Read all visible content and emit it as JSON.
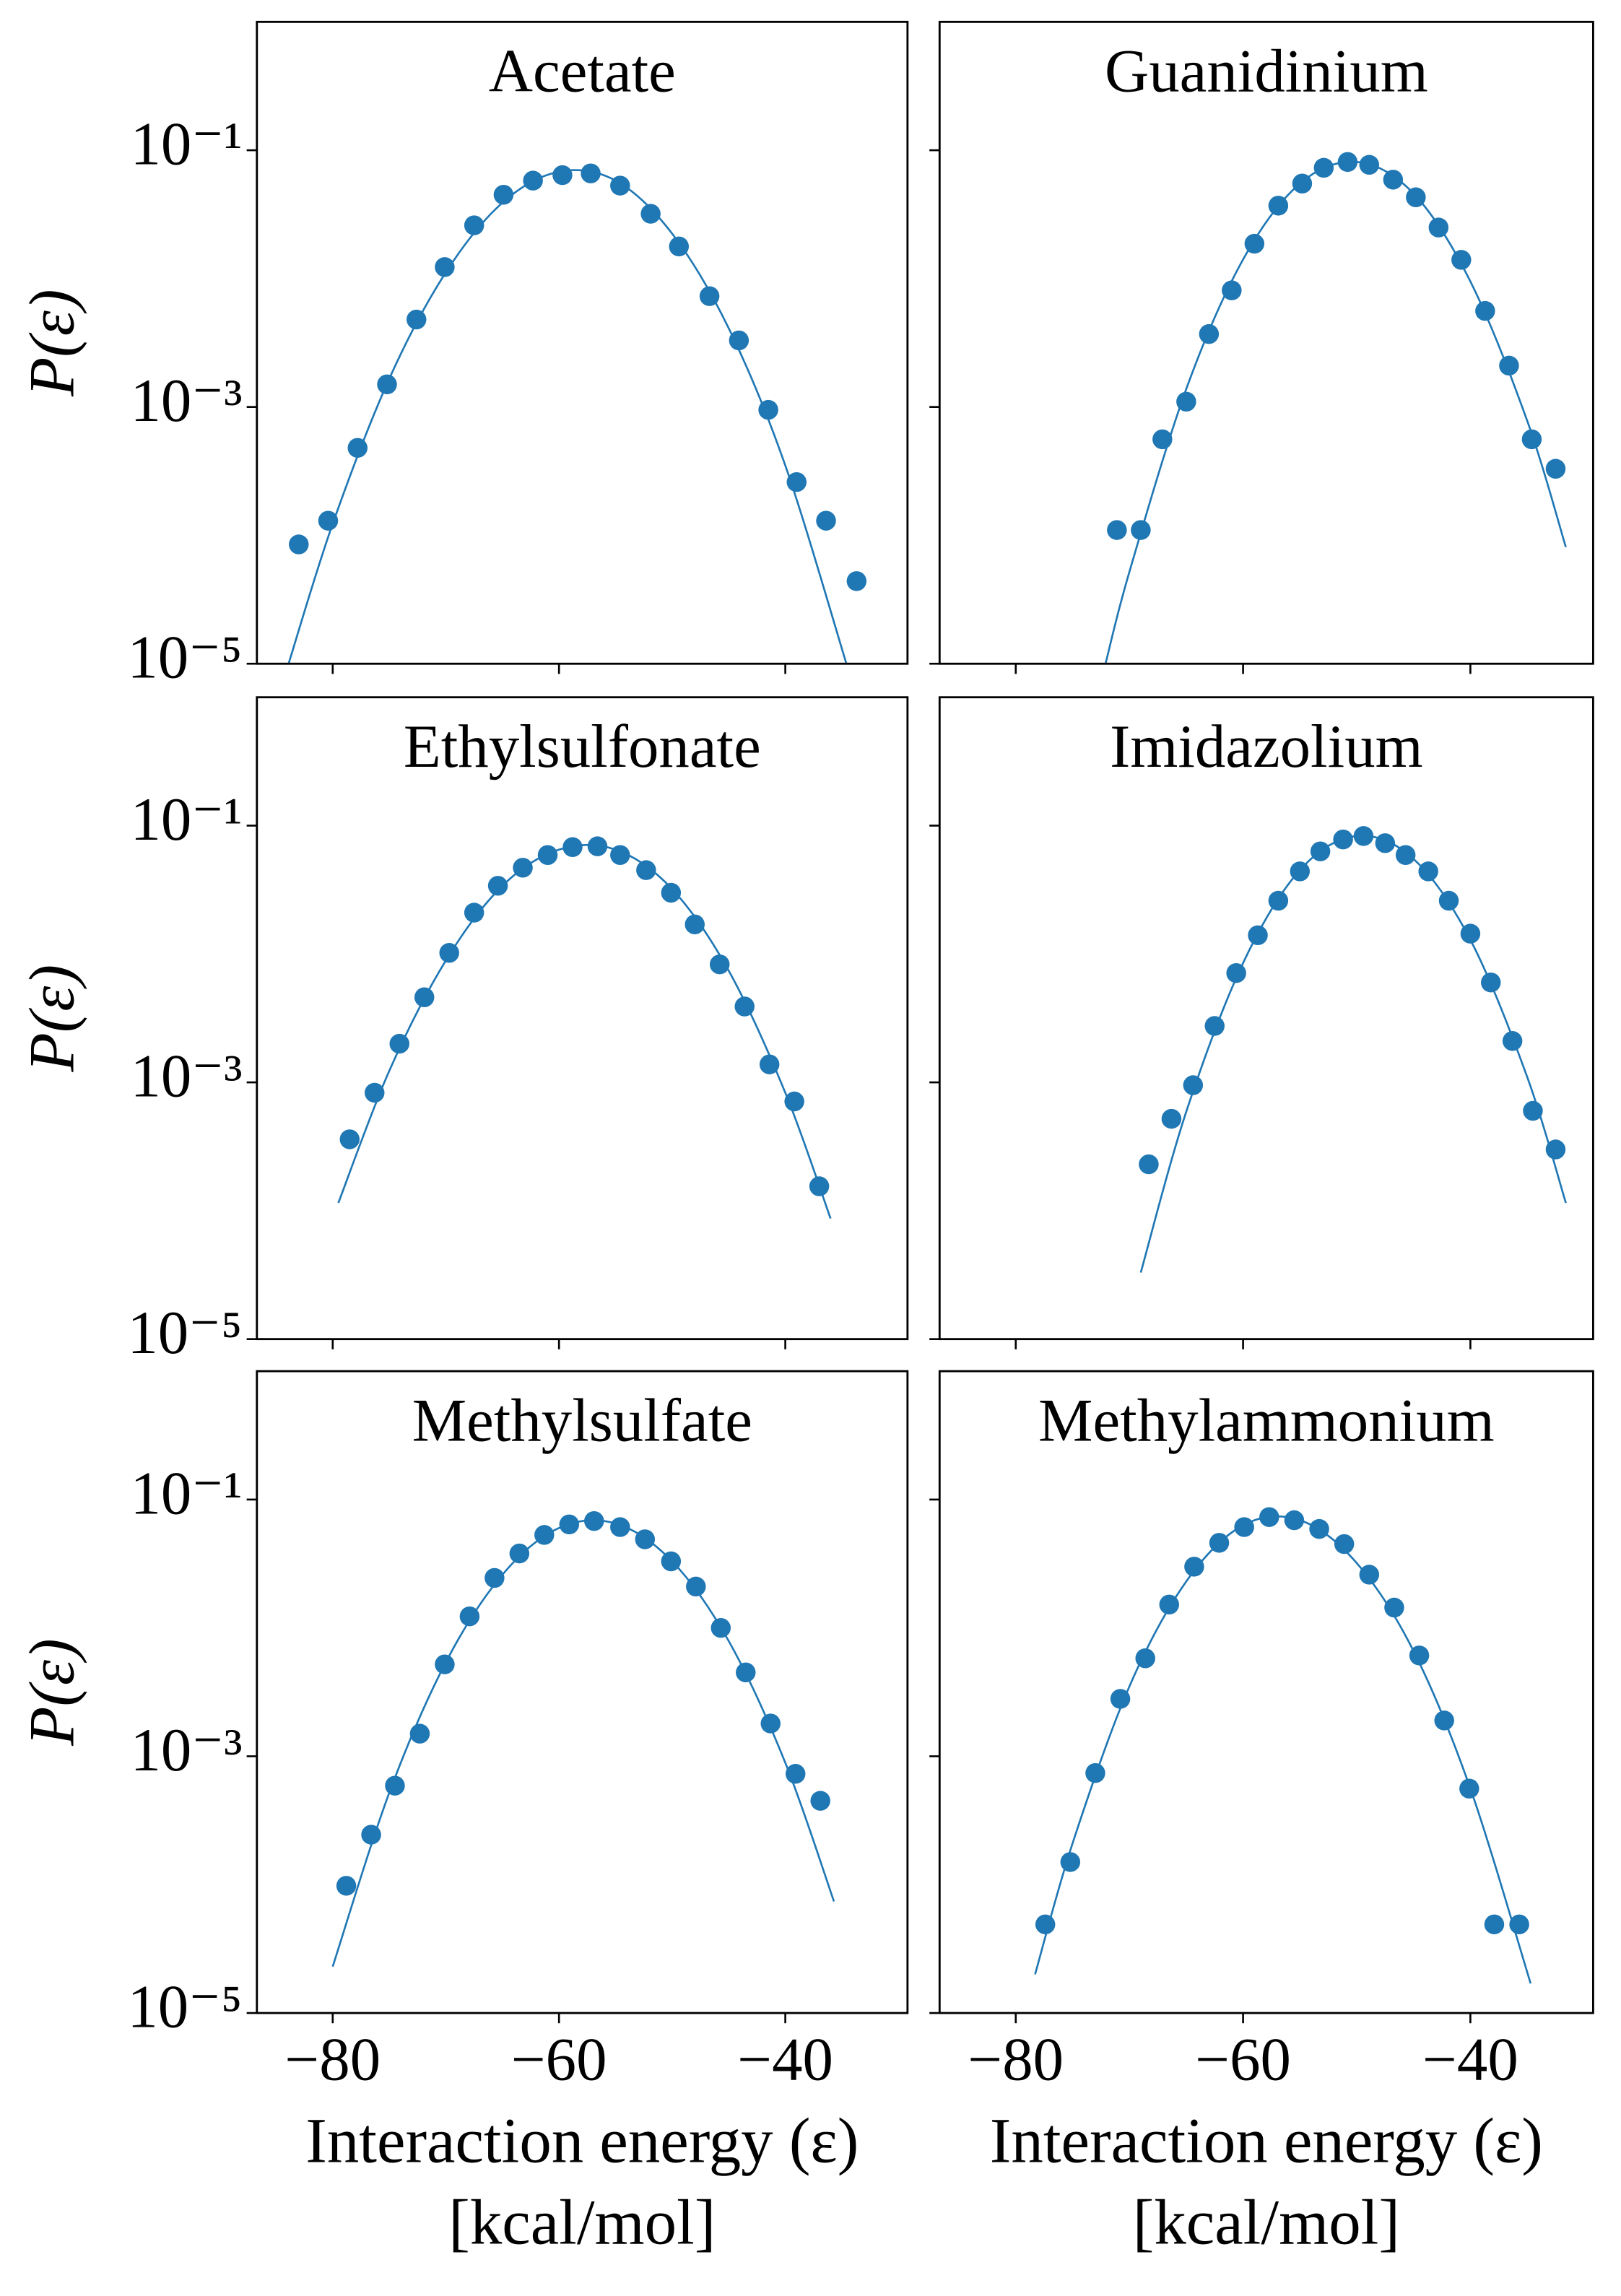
{
  "chart_data": [
    {
      "type": "scatter",
      "title": "Acetate",
      "ylabel": "P(ε)",
      "color": "#1f77b4",
      "yscale": "log",
      "xlim": [
        -86.7,
        -29.2
      ],
      "ylim": [
        1e-05,
        1
      ],
      "xticks": [
        -80,
        -60,
        -40
      ],
      "yticks": [
        {
          "value": 1e-05,
          "label": "10⁻⁵"
        },
        {
          "value": 0.001,
          "label": "10⁻³"
        },
        {
          "value": 0.1,
          "label": "10⁻¹"
        }
      ],
      "points": {
        "x": [
          -83.0,
          -80.4,
          -77.8,
          -75.2,
          -72.6,
          -70.1,
          -67.5,
          -64.9,
          -62.3,
          -59.7,
          -57.2,
          -54.6,
          -51.9,
          -49.4,
          -46.7,
          -44.1,
          -41.5,
          -39.0,
          -36.4,
          -33.7
        ],
        "y": [
          8.5e-05,
          0.00013,
          0.00048,
          0.0015,
          0.0048,
          0.0123,
          0.026,
          0.045,
          0.058,
          0.064,
          0.066,
          0.053,
          0.032,
          0.0178,
          0.0073,
          0.0033,
          0.00095,
          0.00026,
          0.00013,
          4.4e-05
        ]
      },
      "fit": {
        "x": [
          -83.9,
          -80,
          -75,
          -70,
          -65,
          -60,
          -55,
          -50,
          -45,
          -40,
          -34.6
        ],
        "y": [
          1e-05,
          0.000123,
          0.00166,
          0.0112,
          0.039,
          0.068,
          0.058,
          0.0224,
          0.0041,
          0.00035,
          1e-05
        ]
      }
    },
    {
      "type": "scatter",
      "title": "Guanidinium",
      "color": "#1f77b4",
      "yscale": "log",
      "xlim": [
        -86.7,
        -29.2
      ],
      "ylim": [
        1e-05,
        1
      ],
      "xticks": [
        -80,
        -60,
        -40
      ],
      "yticks": [
        1e-05,
        0.001,
        0.1
      ],
      "points": {
        "x": [
          -71.1,
          -69.0,
          -67.1,
          -65.0,
          -63.0,
          -61.0,
          -59.0,
          -56.9,
          -54.8,
          -52.9,
          -50.8,
          -48.9,
          -46.8,
          -44.8,
          -42.8,
          -40.8,
          -38.7,
          -36.6,
          -34.6,
          -32.5
        ],
        "y": [
          0.00011,
          0.00011,
          0.00056,
          0.0011,
          0.0037,
          0.0081,
          0.0187,
          0.037,
          0.055,
          0.073,
          0.081,
          0.077,
          0.059,
          0.043,
          0.025,
          0.014,
          0.0056,
          0.0021,
          0.00056,
          0.00033
        ]
      },
      "fit": {
        "x": [
          -72.1,
          -70,
          -65,
          -60,
          -55,
          -50,
          -45,
          -40,
          -35,
          -31.6
        ],
        "y": [
          1e-05,
          5.2e-05,
          0.00138,
          0.0141,
          0.055,
          0.081,
          0.046,
          0.0095,
          0.00078,
          8.1e-05
        ]
      }
    },
    {
      "type": "scatter",
      "title": "Ethylsulfonate",
      "ylabel": "P(ε)",
      "color": "#1f77b4",
      "yscale": "log",
      "xlim": [
        -86.7,
        -29.2
      ],
      "ylim": [
        1e-05,
        1
      ],
      "xticks": [
        -80,
        -60,
        -40
      ],
      "yticks": [
        {
          "value": 1e-05,
          "label": "10⁻⁵"
        },
        {
          "value": 0.001,
          "label": "10⁻³"
        },
        {
          "value": 0.1,
          "label": "10⁻¹"
        }
      ],
      "points": {
        "x": [
          -78.5,
          -76.3,
          -74.1,
          -71.9,
          -69.7,
          -67.5,
          -65.4,
          -63.2,
          -61.0,
          -58.8,
          -56.6,
          -54.6,
          -52.3,
          -50.1,
          -48.0,
          -45.8,
          -43.6,
          -41.4,
          -39.2,
          -37.0
        ],
        "y": [
          0.00036,
          0.00083,
          0.002,
          0.0046,
          0.0102,
          0.021,
          0.034,
          0.047,
          0.059,
          0.068,
          0.069,
          0.059,
          0.045,
          0.03,
          0.017,
          0.0083,
          0.0039,
          0.00138,
          0.00071,
          0.000155
        ]
      },
      "fit": {
        "x": [
          -79.5,
          -75,
          -70,
          -65,
          -60,
          -55,
          -50,
          -45,
          -40,
          -36
        ],
        "y": [
          0.000115,
          0.00123,
          0.0089,
          0.034,
          0.065,
          0.065,
          0.032,
          0.0074,
          0.00083,
          8.7e-05
        ]
      }
    },
    {
      "type": "scatter",
      "title": "Imidazolium",
      "color": "#1f77b4",
      "yscale": "log",
      "xlim": [
        -86.7,
        -29.2
      ],
      "ylim": [
        1e-05,
        1
      ],
      "xticks": [
        -80,
        -60,
        -40
      ],
      "yticks": [
        1e-05,
        0.001,
        0.1
      ],
      "points": {
        "x": [
          -68.3,
          -66.3,
          -64.4,
          -62.5,
          -60.6,
          -58.7,
          -56.9,
          -55.0,
          -53.2,
          -51.2,
          -49.4,
          -47.5,
          -45.7,
          -43.7,
          -41.9,
          -40.0,
          -38.2,
          -36.3,
          -34.5,
          -32.5
        ],
        "y": [
          0.00023,
          0.00052,
          0.00095,
          0.00275,
          0.0071,
          0.014,
          0.026,
          0.044,
          0.063,
          0.078,
          0.083,
          0.073,
          0.059,
          0.044,
          0.026,
          0.0144,
          0.006,
          0.0021,
          0.0006,
          0.0003
        ]
      },
      "fit": {
        "x": [
          -69,
          -65,
          -60,
          -55,
          -50,
          -45,
          -40,
          -35,
          -31.6
        ],
        "y": [
          3.3e-05,
          0.00059,
          0.0085,
          0.045,
          0.083,
          0.055,
          0.0129,
          0.0011,
          0.000115
        ]
      }
    },
    {
      "type": "scatter",
      "title": "Methylsulfate",
      "ylabel": "P(ε)",
      "xlabel": [
        "Interaction energy (ε)",
        "[kcal/mol]"
      ],
      "color": "#1f77b4",
      "yscale": "log",
      "xlim": [
        -86.7,
        -29.2
      ],
      "ylim": [
        1e-05,
        1
      ],
      "xticks": [
        {
          "value": -80,
          "label": "−80"
        },
        {
          "value": -60,
          "label": "−60"
        },
        {
          "value": -40,
          "label": "−40"
        }
      ],
      "yticks": [
        {
          "value": 1e-05,
          "label": "10⁻⁵"
        },
        {
          "value": 0.001,
          "label": "10⁻³"
        },
        {
          "value": 0.1,
          "label": "10⁻¹"
        }
      ],
      "points": {
        "x": [
          -78.8,
          -76.6,
          -74.5,
          -72.3,
          -70.1,
          -67.9,
          -65.7,
          -63.5,
          -61.3,
          -59.1,
          -56.9,
          -54.6,
          -52.4,
          -50.1,
          -47.9,
          -45.7,
          -43.5,
          -41.3,
          -39.1,
          -36.9
        ],
        "y": [
          9.8e-05,
          0.000245,
          0.00059,
          0.0015,
          0.0052,
          0.0123,
          0.0245,
          0.038,
          0.053,
          0.064,
          0.068,
          0.061,
          0.049,
          0.033,
          0.021,
          0.01,
          0.0045,
          0.0018,
          0.00073,
          0.00045
        ]
      },
      "fit": {
        "x": [
          -80,
          -75,
          -70,
          -65,
          -60,
          -55,
          -50,
          -45,
          -40,
          -35.7
        ],
        "y": [
          2.3e-05,
          0.00052,
          0.0054,
          0.026,
          0.06,
          0.065,
          0.033,
          0.0079,
          0.00089,
          7.4e-05
        ]
      }
    },
    {
      "type": "scatter",
      "title": "Methylammonium",
      "xlabel": [
        "Interaction energy (ε)",
        "[kcal/mol]"
      ],
      "color": "#1f77b4",
      "yscale": "log",
      "xlim": [
        -86.7,
        -29.2
      ],
      "ylim": [
        1e-05,
        1
      ],
      "xticks": [
        {
          "value": -80,
          "label": "−80"
        },
        {
          "value": -60,
          "label": "−60"
        },
        {
          "value": -40,
          "label": "−40"
        }
      ],
      "yticks": [
        1e-05,
        0.001,
        0.1
      ],
      "points": {
        "x": [
          -77.4,
          -75.2,
          -73.0,
          -70.8,
          -68.6,
          -66.5,
          -64.3,
          -62.1,
          -59.9,
          -57.7,
          -55.5,
          -53.3,
          -51.1,
          -48.9,
          -46.7,
          -44.5,
          -42.3,
          -40.1,
          -37.9,
          -35.7
        ],
        "y": [
          4.9e-05,
          0.00015,
          0.00074,
          0.0028,
          0.0058,
          0.0152,
          0.03,
          0.046,
          0.061,
          0.073,
          0.069,
          0.059,
          0.045,
          0.026,
          0.0144,
          0.0061,
          0.0019,
          0.00056,
          4.9e-05,
          4.9e-05
        ]
      },
      "fit": {
        "x": [
          -78.3,
          -75,
          -70,
          -65,
          -60,
          -55,
          -50,
          -45,
          -40,
          -34.7
        ],
        "y": [
          2e-05,
          0.00021,
          0.0035,
          0.023,
          0.063,
          0.069,
          0.032,
          0.0066,
          0.00056,
          1.7e-05
        ]
      }
    }
  ]
}
